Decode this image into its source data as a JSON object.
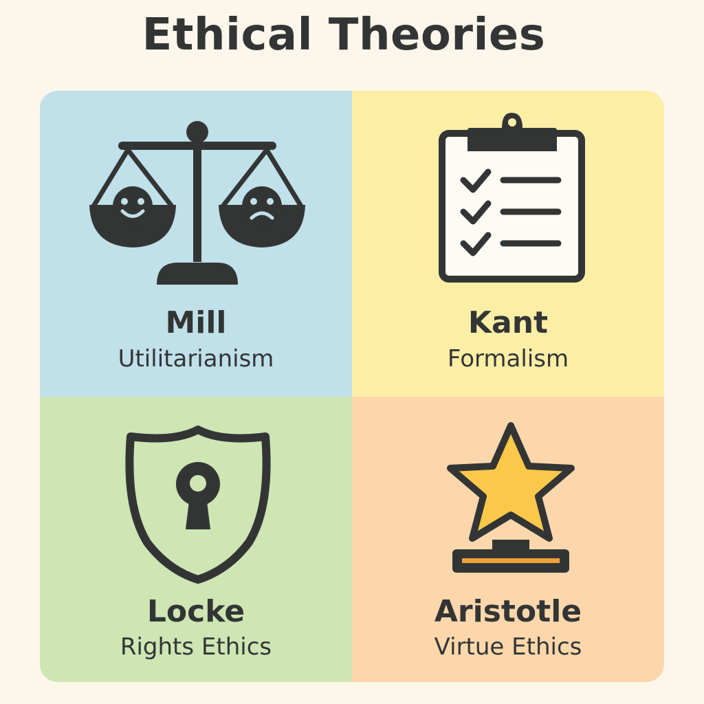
{
  "title": "Ethical Theories",
  "colors": {
    "background": "#fdf6eb",
    "ink": "#333535",
    "mill_panel": "#c0e0ea",
    "kant_panel": "#fdeea6",
    "locke_panel": "#cde6b4",
    "aristotle_panel": "#fcd7ab",
    "star": "#fbc84a",
    "trophy_stripe": "#f0a33a"
  },
  "quadrants": [
    {
      "name": "Mill",
      "theory": "Utilitarianism",
      "icon": "balance-scale-icon"
    },
    {
      "name": "Kant",
      "theory": "Formalism",
      "icon": "clipboard-checklist-icon"
    },
    {
      "name": "Locke",
      "theory": "Rights Ethics",
      "icon": "shield-keyhole-icon"
    },
    {
      "name": "Aristotle",
      "theory": "Virtue Ethics",
      "icon": "star-trophy-icon"
    }
  ]
}
